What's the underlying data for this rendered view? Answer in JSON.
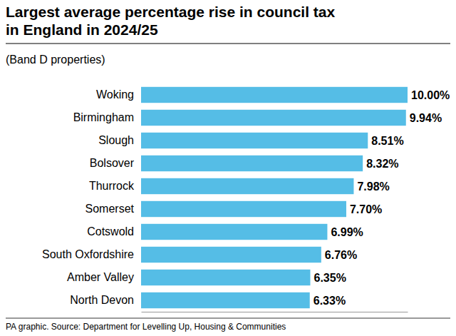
{
  "chart_data": {
    "type": "bar",
    "title": "Largest average percentage rise in council tax in England in 2024/25",
    "subtitle": "(Band D properties)",
    "source": "PA graphic. Source: Department for Levelling Up, Housing & Communities",
    "orientation": "horizontal",
    "categories": [
      "Woking",
      "Birmingham",
      "Slough",
      "Bolsover",
      "Thurrock",
      "Somerset",
      "Cotswold",
      "South Oxfordshire",
      "Amber Valley",
      "North Devon"
    ],
    "values": [
      10.0,
      9.94,
      8.51,
      8.32,
      7.98,
      7.7,
      6.99,
      6.76,
      6.35,
      6.33
    ],
    "value_labels": [
      "10.00%",
      "9.94%",
      "8.51%",
      "8.32%",
      "7.98%",
      "7.70%",
      "6.99%",
      "6.76%",
      "6.35%",
      "6.33%"
    ],
    "color": "#55bde6",
    "xlim": [
      0,
      10
    ],
    "grid": false,
    "data_labels": true,
    "tick_labels": "y"
  }
}
